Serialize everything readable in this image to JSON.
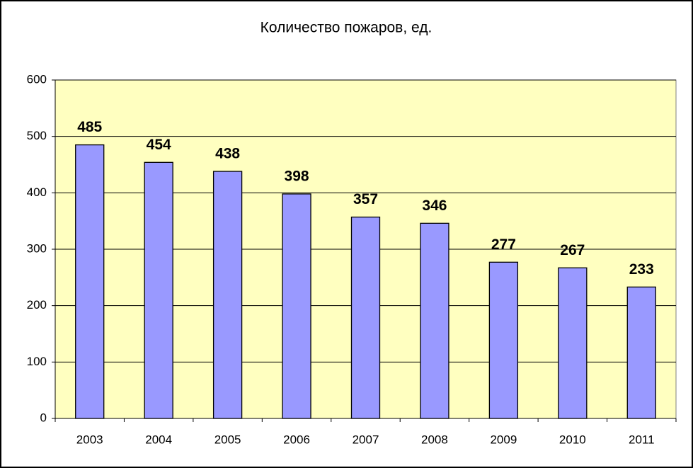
{
  "chart_data": {
    "type": "bar",
    "title": "Количество пожаров, ед.",
    "categories": [
      "2003",
      "2004",
      "2005",
      "2006",
      "2007",
      "2008",
      "2009",
      "2010",
      "2011"
    ],
    "values": [
      485,
      454,
      438,
      398,
      357,
      346,
      277,
      267,
      233
    ],
    "color": "#9999ff",
    "ylim": [
      0,
      600
    ],
    "yticks": [
      0,
      100,
      200,
      300,
      400,
      500,
      600
    ],
    "grid": true
  }
}
